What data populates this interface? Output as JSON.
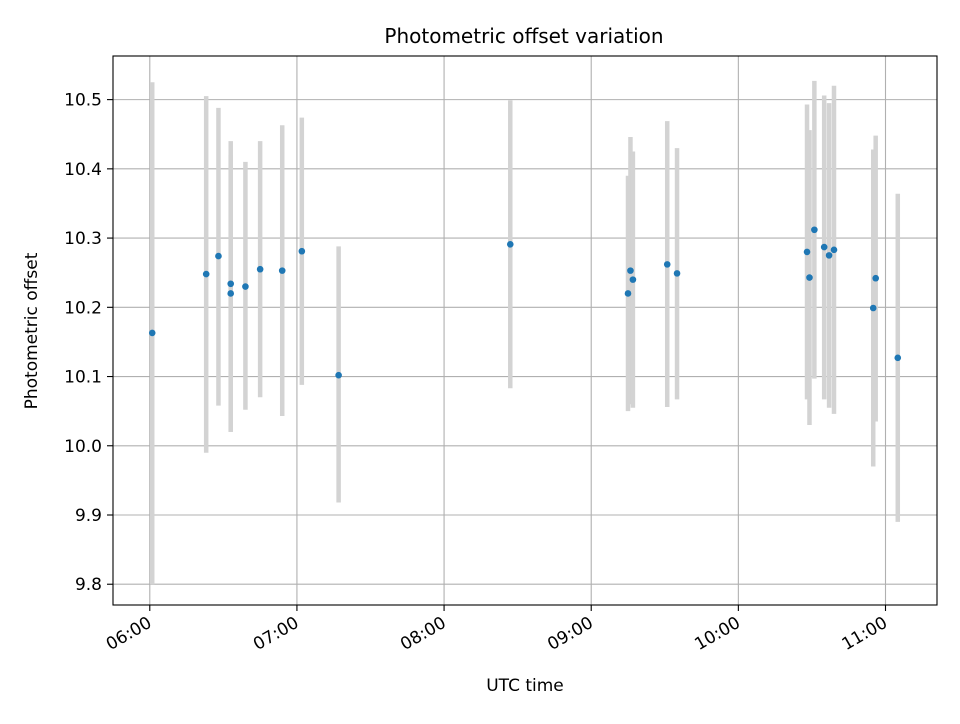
{
  "chart_data": {
    "type": "scatter",
    "title": "Photometric offset variation",
    "xlabel": "UTC time",
    "ylabel": "Photometric offset",
    "ylim": [
      9.77,
      10.563
    ],
    "xlim": [
      "05:45",
      "11:21"
    ],
    "yticks": [
      "9.8",
      "9.9",
      "10.0",
      "10.1",
      "10.2",
      "10.3",
      "10.4",
      "10.5"
    ],
    "xticks": [
      "06:00",
      "07:00",
      "08:00",
      "09:00",
      "10:00",
      "11:00"
    ],
    "grid": true,
    "colors": {
      "points": "#1f77b4",
      "errorbars": "#d3d3d3",
      "grid": "#b0b0b0"
    },
    "points": [
      {
        "x": "06:01",
        "y": 10.163,
        "ylow": 9.8,
        "yhigh": 10.525
      },
      {
        "x": "06:23",
        "y": 10.248,
        "ylow": 9.99,
        "yhigh": 10.505
      },
      {
        "x": "06:28",
        "y": 10.274,
        "ylow": 10.058,
        "yhigh": 10.488
      },
      {
        "x": "06:33",
        "y": 10.234,
        "ylow": 10.02,
        "yhigh": 10.44
      },
      {
        "x": "06:33",
        "y": 10.22,
        "ylow": 10.02,
        "yhigh": 10.42
      },
      {
        "x": "06:39",
        "y": 10.23,
        "ylow": 10.052,
        "yhigh": 10.41
      },
      {
        "x": "06:45",
        "y": 10.255,
        "ylow": 10.07,
        "yhigh": 10.44
      },
      {
        "x": "06:54",
        "y": 10.253,
        "ylow": 10.043,
        "yhigh": 10.463
      },
      {
        "x": "07:02",
        "y": 10.281,
        "ylow": 10.088,
        "yhigh": 10.474
      },
      {
        "x": "07:17",
        "y": 10.102,
        "ylow": 9.918,
        "yhigh": 10.288
      },
      {
        "x": "08:27",
        "y": 10.291,
        "ylow": 10.083,
        "yhigh": 10.499
      },
      {
        "x": "09:15",
        "y": 10.22,
        "ylow": 10.05,
        "yhigh": 10.39
      },
      {
        "x": "09:16",
        "y": 10.253,
        "ylow": 10.06,
        "yhigh": 10.446
      },
      {
        "x": "09:17",
        "y": 10.24,
        "ylow": 10.055,
        "yhigh": 10.425
      },
      {
        "x": "09:31",
        "y": 10.262,
        "ylow": 10.056,
        "yhigh": 10.469
      },
      {
        "x": "09:35",
        "y": 10.249,
        "ylow": 10.067,
        "yhigh": 10.43
      },
      {
        "x": "10:28",
        "y": 10.28,
        "ylow": 10.067,
        "yhigh": 10.493
      },
      {
        "x": "10:29",
        "y": 10.243,
        "ylow": 10.03,
        "yhigh": 10.456
      },
      {
        "x": "10:31",
        "y": 10.312,
        "ylow": 10.097,
        "yhigh": 10.527
      },
      {
        "x": "10:35",
        "y": 10.287,
        "ylow": 10.067,
        "yhigh": 10.506
      },
      {
        "x": "10:37",
        "y": 10.275,
        "ylow": 10.055,
        "yhigh": 10.495
      },
      {
        "x": "10:39",
        "y": 10.283,
        "ylow": 10.046,
        "yhigh": 10.52
      },
      {
        "x": "10:55",
        "y": 10.199,
        "ylow": 9.97,
        "yhigh": 10.428
      },
      {
        "x": "10:56",
        "y": 10.242,
        "ylow": 10.035,
        "yhigh": 10.448
      },
      {
        "x": "11:05",
        "y": 10.127,
        "ylow": 9.89,
        "yhigh": 10.364
      }
    ]
  }
}
